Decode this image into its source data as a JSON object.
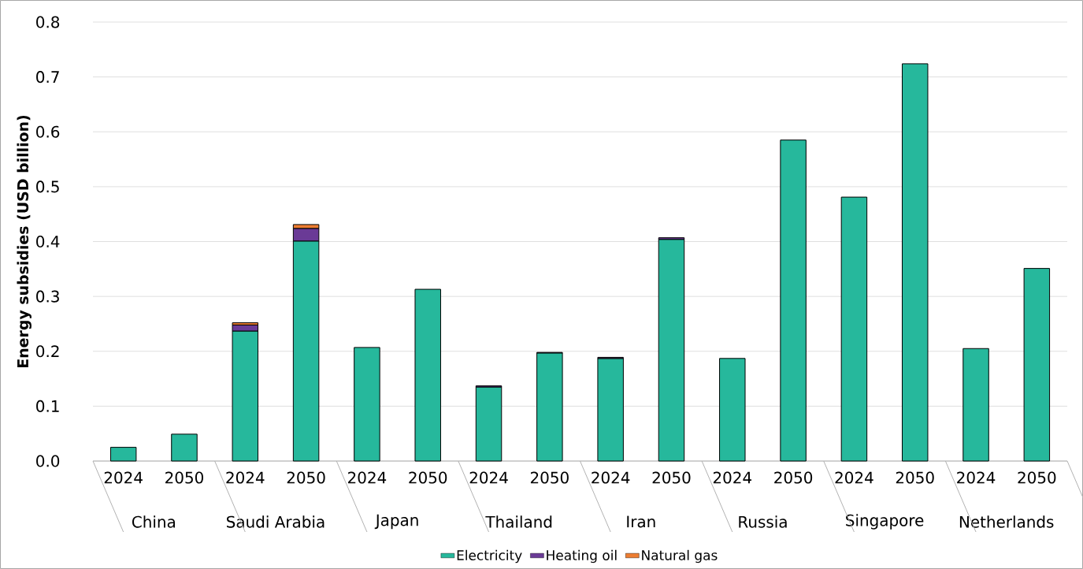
{
  "chart_data": {
    "type": "bar",
    "stacked": true,
    "ylabel": "Energy subsidies (USD billion)",
    "categories": [
      "2024",
      "2050",
      "2024",
      "2050",
      "2024",
      "2050",
      "2024",
      "2050",
      "2024",
      "2050",
      "2024",
      "2050",
      "2024",
      "2050",
      "2024",
      "2050"
    ],
    "annotations": [
      "China",
      "Saudi Arabia",
      "Japan",
      "Thailand",
      "Iran",
      "Russia",
      "Singapore",
      "Netherlands"
    ],
    "series": [
      {
        "name": "Electricity",
        "color": "#26b89c",
        "values": [
          0.025,
          0.049,
          0.237,
          0.401,
          0.207,
          0.313,
          0.135,
          0.197,
          0.187,
          0.404,
          0.187,
          0.585,
          0.481,
          0.724,
          0.205,
          0.351
        ]
      },
      {
        "name": "Heating oil",
        "color": "#6a3a96",
        "values": [
          null,
          null,
          0.011,
          0.023,
          null,
          null,
          0.002,
          0.001,
          0.002,
          0.003,
          null,
          null,
          null,
          null,
          null,
          null
        ]
      },
      {
        "name": "Natural gas",
        "color": "#ed7d31",
        "values": [
          null,
          null,
          0.004,
          0.007,
          null,
          null,
          null,
          null,
          null,
          null,
          null,
          null,
          null,
          null,
          null,
          null
        ]
      }
    ],
    "ylim": [
      0,
      0.8
    ],
    "yticks": [
      {
        "value": 0,
        "label": "0.0"
      },
      0.1,
      0.2,
      0.3,
      0.4,
      0.5,
      0.6,
      0.7,
      0.8
    ],
    "grid": "y",
    "legend": "bottom"
  }
}
